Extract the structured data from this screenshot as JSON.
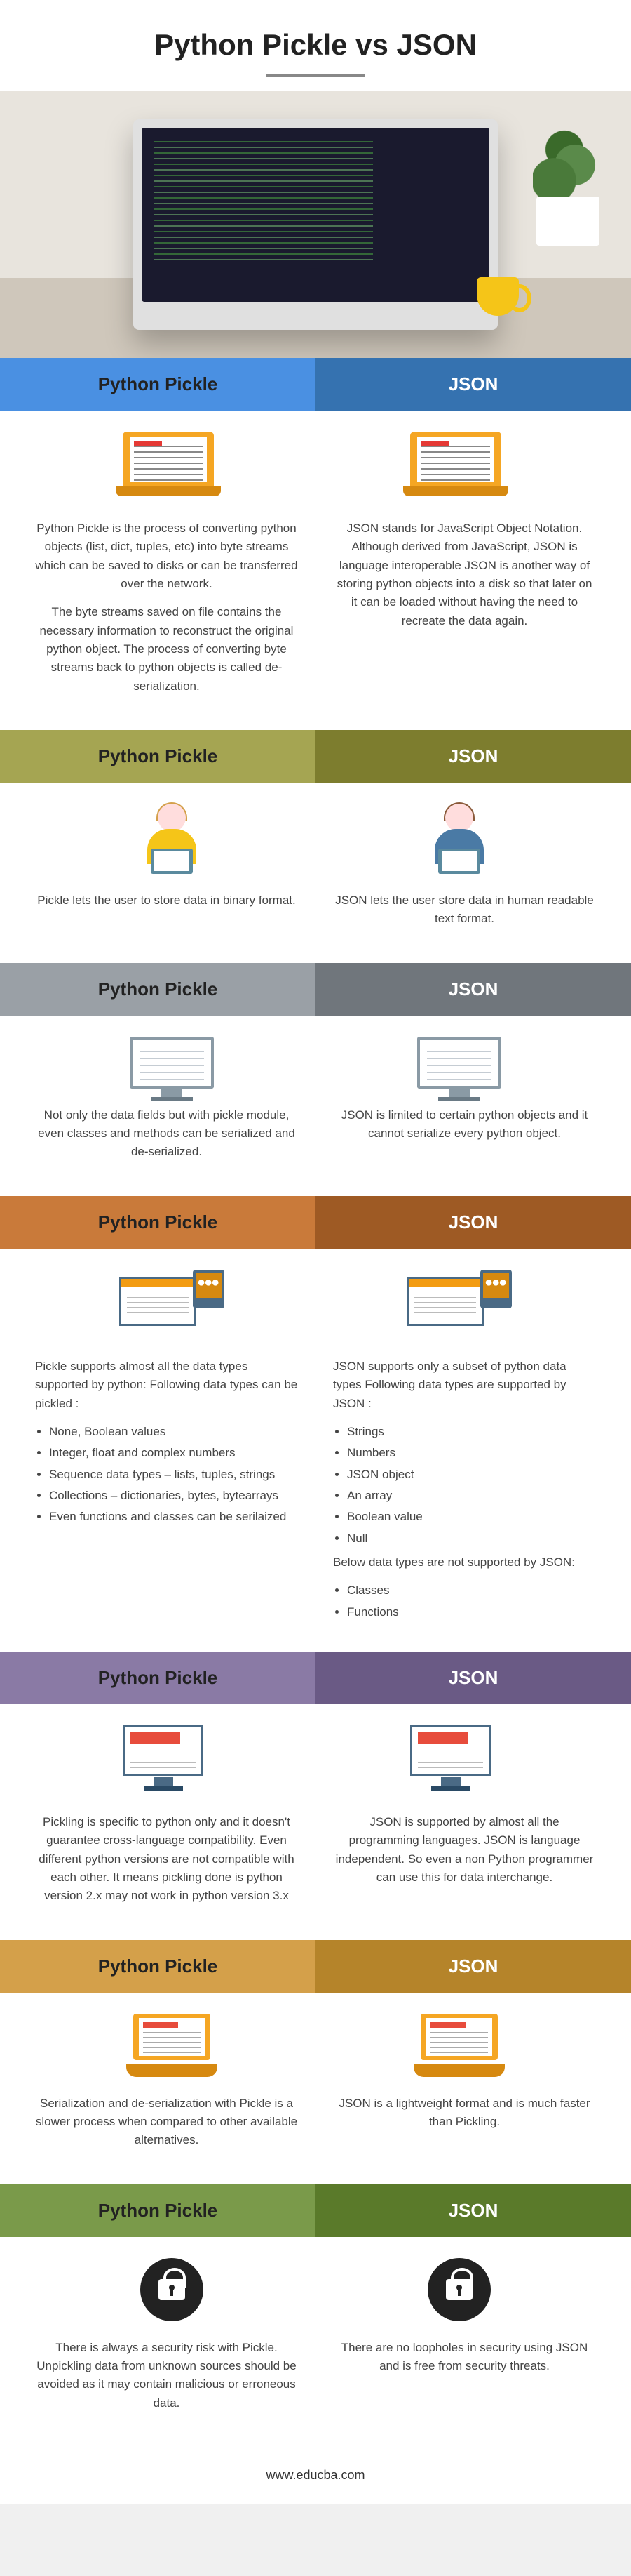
{
  "title": "Python Pickle vs JSON",
  "footer": "www.educba.com",
  "headers": {
    "left": "Python Pickle",
    "right": "JSON"
  },
  "section_colors": [
    {
      "left": "#4a90e2",
      "right": "#3572b0"
    },
    {
      "left": "#a5a552",
      "right": "#7d7d2e"
    },
    {
      "left": "#9aa0a6",
      "right": "#70767c"
    },
    {
      "left": "#c97a3a",
      "right": "#9e5a24"
    },
    {
      "left": "#8a7aa5",
      "right": "#6a5a85"
    },
    {
      "left": "#d4a04a",
      "right": "#b5842a"
    },
    {
      "left": "#7a9a4a",
      "right": "#5a7a2a"
    }
  ],
  "sections": [
    {
      "left": [
        "Python Pickle is the process of converting python objects (list, dict, tuples, etc) into byte streams which can be saved to disks or can be transferred over the network.",
        "The byte streams saved on file contains the necessary information to reconstruct the original python object. The process of converting byte streams back to python objects is called de-serialization."
      ],
      "right": [
        "JSON stands for JavaScript Object Notation. Although derived from JavaScript, JSON is language interoperable JSON is another way of storing python objects into a disk so that later on it can be loaded without having the need to recreate the data again."
      ]
    },
    {
      "left": [
        "Pickle lets the user to store data in binary format."
      ],
      "right": [
        "JSON lets the user store data in human readable text format."
      ]
    },
    {
      "left": [
        "Not only the data fields but with pickle module, even classes and methods can be serialized and de-serialized."
      ],
      "right": [
        "JSON is limited to certain python objects and it cannot serialize every python object."
      ]
    },
    {
      "left_intro": "Pickle supports almost all the data types supported by python: Following data types can be pickled :",
      "left_list": [
        "None, Boolean values",
        "Integer, float and complex numbers",
        "Sequence data types – lists, tuples, strings",
        "Collections – dictionaries, bytes, bytearrays",
        "Even functions and classes can be serilaized"
      ],
      "right_intro": "JSON supports only a subset of python data types Following data types are supported by JSON :",
      "right_list": [
        "Strings",
        "Numbers",
        "JSON object",
        "An array",
        "Boolean value",
        "Null"
      ],
      "right_mid": "Below data types are not supported by JSON:",
      "right_list2": [
        "Classes",
        "Functions"
      ]
    },
    {
      "left": [
        "Pickling is specific to python only and it doesn't guarantee cross-language compatibility. Even different python versions are not compatible with each other. It means pickling done is python version 2.x may not work in python version 3.x"
      ],
      "right": [
        "JSON is supported by almost all the programming languages. JSON is language independent. So even a non Python programmer can use this for data interchange."
      ]
    },
    {
      "left": [
        "Serialization and de-serialization with Pickle is a slower process when compared to other available alternatives."
      ],
      "right": [
        "JSON is a lightweight format and is much faster than Pickling."
      ]
    },
    {
      "left": [
        "There is always a security risk with Pickle. Unpickling data from unknown sources should be avoided as it may contain malicious or erroneous data."
      ],
      "right": [
        "There are no loopholes in security using JSON and is free from security threats."
      ]
    }
  ]
}
